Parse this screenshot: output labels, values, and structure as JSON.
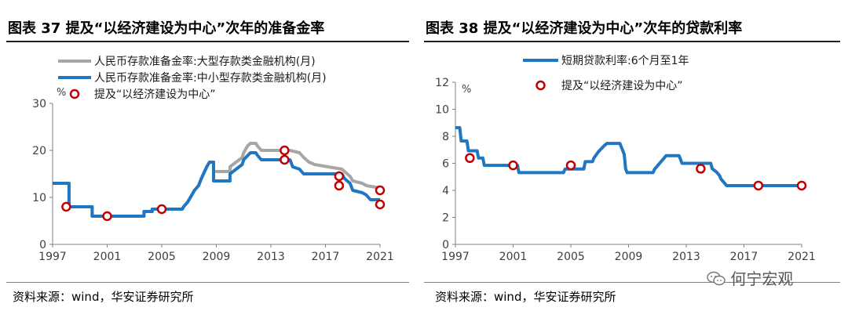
{
  "colors": {
    "series_blue": "#1f77c4",
    "series_gray": "#a6a6a6",
    "marker": "#c00000",
    "axis": "#7f7f7f"
  },
  "left": {
    "title": "图表 37 提及“以经济建设为中心”次年的准备金率",
    "source": "资料来源：wind，华安证券研究所"
  },
  "right": {
    "title": "图表 38 提及“以经济建设为中心”次年的贷款利率",
    "source": "资料来源：wind，华安证券研究所"
  },
  "watermark": {
    "text": "何宁宏观",
    "icon": "wechat-icon"
  },
  "chart_data": [
    {
      "type": "line",
      "title": "图表 37 提及“以经济建设为中心”次年的准备金率",
      "xlabel": "",
      "ylabel": "%",
      "xlim": [
        1997,
        2021
      ],
      "ylim": [
        0,
        30
      ],
      "x_ticks": [
        1997,
        2001,
        2005,
        2009,
        2013,
        2017,
        2021
      ],
      "y_ticks": [
        0,
        10,
        20,
        30
      ],
      "legend": [
        "人民币存款准备金率:大型存款类金融机构(月)",
        "人民币存款准备金率:中小型存款类金融机构(月)",
        "提及“以经济建设为中心”"
      ],
      "legend_position": "top",
      "series": [
        {
          "name": "人民币存款准备金率:大型存款类金融机构(月)",
          "color": "gray",
          "points": [
            [
              1997,
              13
            ],
            [
              1998.2,
              13
            ],
            [
              1998.2,
              8
            ],
            [
              1999.9,
              8
            ],
            [
              1999.9,
              6
            ],
            [
              2003.7,
              6
            ],
            [
              2003.7,
              7
            ],
            [
              2004.3,
              7
            ],
            [
              2004.3,
              7.5
            ],
            [
              2006.5,
              7.5
            ],
            [
              2006.6,
              8
            ],
            [
              2006.9,
              9
            ],
            [
              2007.1,
              10
            ],
            [
              2007.4,
              11.5
            ],
            [
              2007.7,
              12.5
            ],
            [
              2007.9,
              14
            ],
            [
              2008.3,
              16.5
            ],
            [
              2008.5,
              17.5
            ],
            [
              2008.8,
              17.5
            ],
            [
              2008.8,
              15.5
            ],
            [
              2010.0,
              15.5
            ],
            [
              2010.0,
              16.5
            ],
            [
              2010.9,
              18.5
            ],
            [
              2011.0,
              19.5
            ],
            [
              2011.3,
              21
            ],
            [
              2011.5,
              21.5
            ],
            [
              2011.9,
              21.5
            ],
            [
              2012.0,
              21
            ],
            [
              2012.3,
              20
            ],
            [
              2014.4,
              20
            ],
            [
              2015.1,
              19.5
            ],
            [
              2015.4,
              18.5
            ],
            [
              2015.8,
              17.5
            ],
            [
              2016.2,
              17
            ],
            [
              2018.2,
              16
            ],
            [
              2018.4,
              15.5
            ],
            [
              2018.8,
              14.5
            ],
            [
              2019.0,
              13.5
            ],
            [
              2019.7,
              13
            ],
            [
              2020.0,
              12.5
            ],
            [
              2021.0,
              12
            ]
          ]
        },
        {
          "name": "人民币存款准备金率:中小型存款类金融机构(月)",
          "color": "blue",
          "points": [
            [
              1997,
              13
            ],
            [
              1998.2,
              13
            ],
            [
              1998.2,
              8
            ],
            [
              1999.9,
              8
            ],
            [
              1999.9,
              6
            ],
            [
              2003.7,
              6
            ],
            [
              2003.7,
              7
            ],
            [
              2004.3,
              7
            ],
            [
              2004.3,
              7.5
            ],
            [
              2006.5,
              7.5
            ],
            [
              2006.6,
              8
            ],
            [
              2006.9,
              9
            ],
            [
              2007.1,
              10
            ],
            [
              2007.4,
              11.5
            ],
            [
              2007.7,
              12.5
            ],
            [
              2007.9,
              14
            ],
            [
              2008.3,
              16.5
            ],
            [
              2008.5,
              17.5
            ],
            [
              2008.8,
              17.5
            ],
            [
              2008.8,
              13.5
            ],
            [
              2010.0,
              13.5
            ],
            [
              2010.0,
              15
            ],
            [
              2010.9,
              17
            ],
            [
              2011.0,
              18
            ],
            [
              2011.5,
              19.5
            ],
            [
              2011.9,
              19.5
            ],
            [
              2012.0,
              19
            ],
            [
              2012.3,
              18
            ],
            [
              2014.4,
              18
            ],
            [
              2014.6,
              16.5
            ],
            [
              2015.1,
              16
            ],
            [
              2015.4,
              15
            ],
            [
              2018.2,
              15
            ],
            [
              2018.4,
              14
            ],
            [
              2018.8,
              13
            ],
            [
              2019.0,
              11.5
            ],
            [
              2019.7,
              11
            ],
            [
              2020.0,
              10.5
            ],
            [
              2020.3,
              9.5
            ],
            [
              2021.0,
              9.5
            ]
          ]
        }
      ],
      "markers": {
        "name": "提及“以经济建设为中心”",
        "points": [
          [
            1998,
            8
          ],
          [
            2001,
            6
          ],
          [
            2005,
            7.5
          ],
          [
            2014,
            20
          ],
          [
            2014,
            18
          ],
          [
            2018,
            14.5
          ],
          [
            2018,
            12.5
          ],
          [
            2021,
            11.5
          ],
          [
            2021,
            8.5
          ]
        ]
      }
    },
    {
      "type": "line",
      "title": "图表 38 提及“以经济建设为中心”次年的贷款利率",
      "xlabel": "",
      "ylabel": "%",
      "xlim": [
        1997,
        2021
      ],
      "ylim": [
        0,
        12
      ],
      "x_ticks": [
        1997,
        2001,
        2005,
        2009,
        2013,
        2017,
        2021
      ],
      "y_ticks": [
        0,
        2,
        4,
        6,
        8,
        10,
        12
      ],
      "legend": [
        "短期贷款利率:6个月至1年",
        "提及“以经济建设为中心”"
      ],
      "legend_position": "top",
      "series": [
        {
          "name": "短期贷款利率:6个月至1年",
          "color": "blue",
          "points": [
            [
              1997,
              8.64
            ],
            [
              1997.3,
              8.64
            ],
            [
              1997.4,
              7.65
            ],
            [
              1997.8,
              7.65
            ],
            [
              1997.9,
              6.93
            ],
            [
              1998.5,
              6.93
            ],
            [
              1998.6,
              6.39
            ],
            [
              1998.9,
              6.39
            ],
            [
              1999.0,
              5.85
            ],
            [
              2001.3,
              5.85
            ],
            [
              2001.4,
              5.31
            ],
            [
              2004.5,
              5.31
            ],
            [
              2004.6,
              5.58
            ],
            [
              2005.9,
              5.58
            ],
            [
              2006.0,
              6.12
            ],
            [
              2006.5,
              6.12
            ],
            [
              2006.6,
              6.39
            ],
            [
              2006.9,
              6.84
            ],
            [
              2007.3,
              7.29
            ],
            [
              2007.5,
              7.47
            ],
            [
              2008.4,
              7.47
            ],
            [
              2008.7,
              6.66
            ],
            [
              2008.8,
              5.58
            ],
            [
              2008.9,
              5.31
            ],
            [
              2010.7,
              5.31
            ],
            [
              2010.8,
              5.56
            ],
            [
              2011.0,
              5.81
            ],
            [
              2011.2,
              6.06
            ],
            [
              2011.4,
              6.31
            ],
            [
              2011.6,
              6.56
            ],
            [
              2012.5,
              6.56
            ],
            [
              2012.6,
              6.31
            ],
            [
              2012.7,
              6.0
            ],
            [
              2014.7,
              6.0
            ],
            [
              2014.8,
              5.6
            ],
            [
              2015.1,
              5.35
            ],
            [
              2015.3,
              5.1
            ],
            [
              2015.4,
              4.85
            ],
            [
              2015.6,
              4.6
            ],
            [
              2015.8,
              4.35
            ],
            [
              2021.0,
              4.35
            ]
          ]
        }
      ],
      "markers": {
        "name": "提及“以经济建设为中心”",
        "points": [
          [
            1998,
            6.39
          ],
          [
            2001,
            5.85
          ],
          [
            2005,
            5.85
          ],
          [
            2014,
            5.6
          ],
          [
            2018,
            4.35
          ],
          [
            2021,
            4.35
          ]
        ]
      }
    }
  ]
}
